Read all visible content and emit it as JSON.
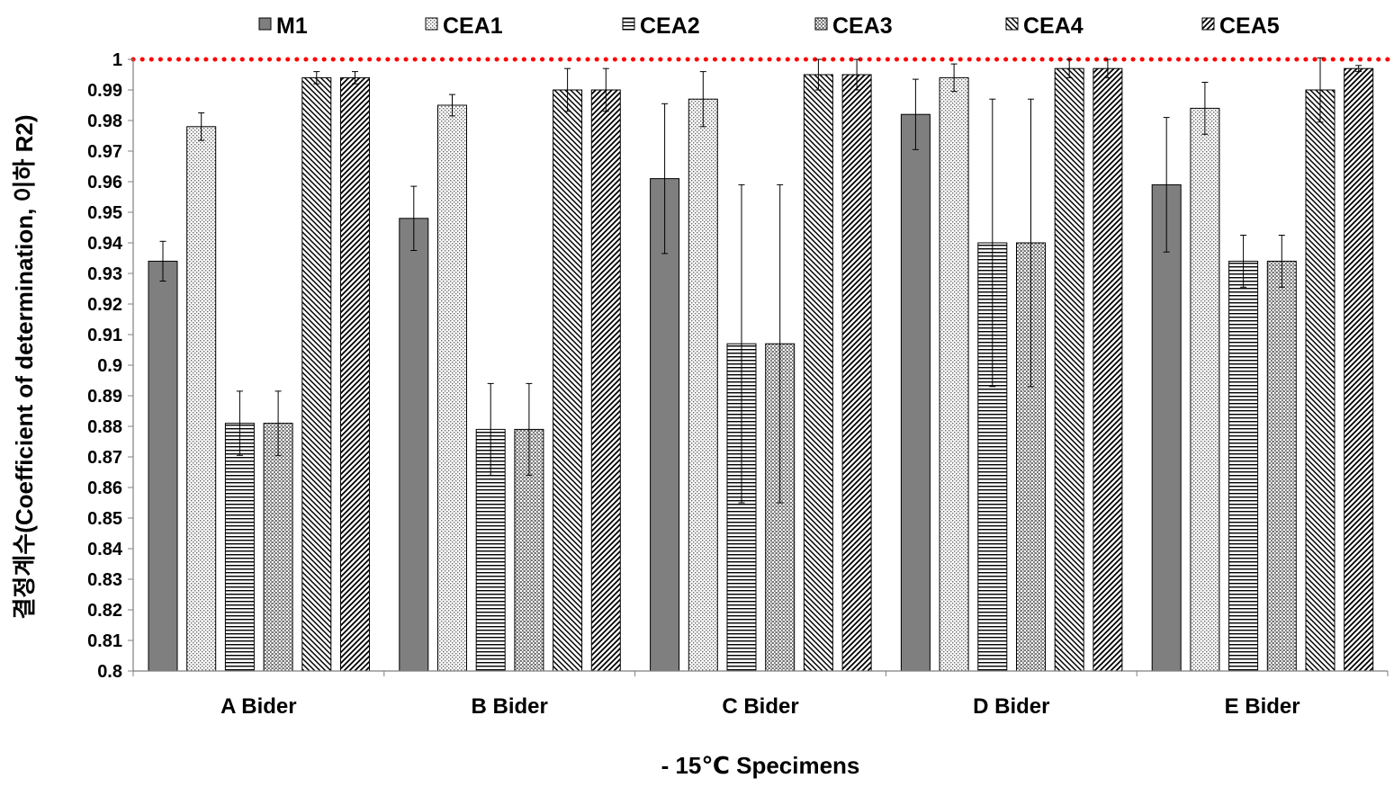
{
  "chart_data": {
    "type": "bar",
    "title": "",
    "xlabel": "- 15℃ Specimens",
    "ylabel": "결정계수(Coefficient of determination, 이하 R2)",
    "ylim": [
      0.8,
      1.0
    ],
    "yticks": [
      "0.8",
      "0.81",
      "0.82",
      "0.83",
      "0.84",
      "0.85",
      "0.86",
      "0.87",
      "0.88",
      "0.89",
      "0.9",
      "0.91",
      "0.92",
      "0.93",
      "0.94",
      "0.95",
      "0.96",
      "0.97",
      "0.98",
      "0.99",
      "1"
    ],
    "categories": [
      "A Bider",
      "B Bider",
      "C Bider",
      "D Bider",
      "E Bider"
    ],
    "legend_position": "top",
    "grid": false,
    "reference_line": {
      "value": 1.0,
      "color": "#ff0000",
      "style": "dotted"
    },
    "series": [
      {
        "name": "M1",
        "pattern": "solid-gray",
        "values": [
          0.934,
          0.948,
          0.961,
          0.982,
          0.959
        ],
        "errors": [
          0.0065,
          0.0105,
          0.0245,
          0.0115,
          0.022
        ]
      },
      {
        "name": "CEA1",
        "pattern": "dots",
        "values": [
          0.978,
          0.985,
          0.987,
          0.994,
          0.984
        ],
        "errors": [
          0.0045,
          0.0035,
          0.009,
          0.0045,
          0.0085
        ]
      },
      {
        "name": "CEA2",
        "pattern": "hlines",
        "values": [
          0.881,
          0.879,
          0.907,
          0.94,
          0.934
        ],
        "errors": [
          0.0105,
          0.015,
          0.052,
          0.047,
          0.0085
        ]
      },
      {
        "name": "CEA3",
        "pattern": "checker",
        "values": [
          0.881,
          0.879,
          0.907,
          0.94,
          0.934
        ],
        "errors": [
          0.0105,
          0.015,
          0.052,
          0.047,
          0.0085
        ]
      },
      {
        "name": "CEA4",
        "pattern": "diag-down",
        "values": [
          0.994,
          0.99,
          0.995,
          0.997,
          0.99
        ],
        "errors": [
          0.002,
          0.007,
          0.005,
          0.003,
          0.0105
        ]
      },
      {
        "name": "CEA5",
        "pattern": "diag-up",
        "values": [
          0.994,
          0.99,
          0.995,
          0.997,
          0.997
        ],
        "errors": [
          0.002,
          0.007,
          0.005,
          0.003,
          0.001
        ]
      }
    ]
  }
}
